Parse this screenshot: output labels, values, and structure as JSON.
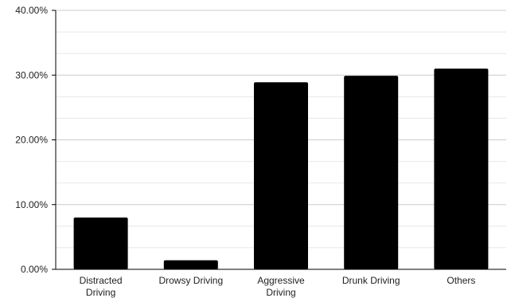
{
  "chart_data": {
    "type": "bar",
    "title": "",
    "xlabel": "",
    "ylabel": "",
    "categories": [
      "Distracted Driving",
      "Drowsy Driving",
      "Aggressive Driving",
      "Drunk Driving",
      "Others"
    ],
    "category_lines": [
      [
        "Distracted",
        "Driving"
      ],
      [
        "Drowsy Driving"
      ],
      [
        "Aggressive",
        "Driving"
      ],
      [
        "Drunk Driving"
      ],
      [
        "Others"
      ]
    ],
    "values": [
      8.0,
      1.4,
      28.9,
      29.9,
      31.0
    ],
    "value_unit": "%",
    "ylim": [
      0,
      40
    ],
    "y_ticks": [
      0,
      10,
      20,
      30,
      40
    ],
    "y_tick_labels": [
      "0.00%",
      "10.00%",
      "20.00%",
      "30.00%",
      "40.00%"
    ],
    "grid": "horizontal major and minor",
    "legend": "none",
    "bar_color": "#000000",
    "grid_color_major": "#cccccc",
    "grid_color_minor": "#e8e8e8",
    "axis_color": "#000000"
  }
}
